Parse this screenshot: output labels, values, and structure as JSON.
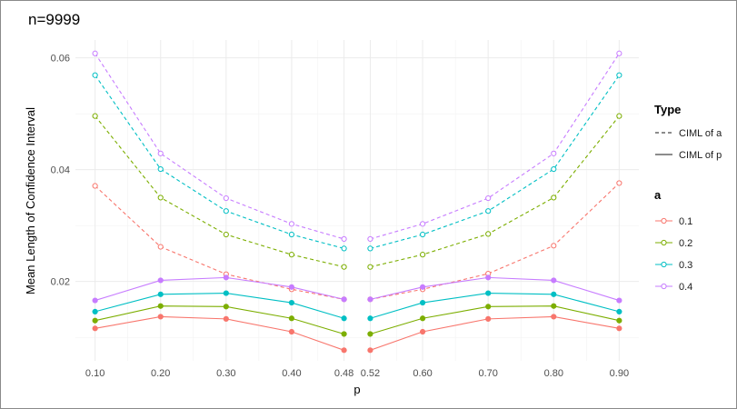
{
  "chart_data": {
    "type": "line",
    "title": "n=9999",
    "xlabel": "p",
    "ylabel": "Mean Length of Confidence Interval",
    "xlim": [
      0.07,
      0.93
    ],
    "ylim": [
      0.0058,
      0.0632
    ],
    "x_ticks": [
      0.1,
      0.2,
      0.3,
      0.4,
      0.48,
      0.52,
      0.6,
      0.7,
      0.8,
      0.9
    ],
    "x_tick_labels": [
      "0.10",
      "0.20",
      "0.30",
      "0.40",
      "0.48",
      "0.52",
      "0.60",
      "0.70",
      "0.80",
      "0.90"
    ],
    "y_ticks": [
      0.02,
      0.04,
      0.06
    ],
    "y_tick_labels": [
      "0.02",
      "0.04",
      "0.06"
    ],
    "grid": true,
    "legend_type": {
      "title": "Type",
      "entries": [
        {
          "label": "CIML of a",
          "linestyle": "dashed"
        },
        {
          "label": "CIML of p",
          "linestyle": "solid"
        }
      ]
    },
    "legend_a": {
      "title": "a",
      "entries": [
        {
          "label": "0.1",
          "color": "#F8766D"
        },
        {
          "label": "0.2",
          "color": "#7CAE00"
        },
        {
          "label": "0.3",
          "color": "#00BFC4"
        },
        {
          "label": "0.4",
          "color": "#C77CFF"
        }
      ]
    },
    "segments": {
      "left": [
        0.1,
        0.2,
        0.3,
        0.4,
        0.48
      ],
      "right": [
        0.52,
        0.6,
        0.7,
        0.8,
        0.9
      ]
    },
    "series": [
      {
        "a": "0.1",
        "type": "CIML of a",
        "color": "#F8766D",
        "linestyle": "dashed",
        "marker": "open",
        "x": [
          0.1,
          0.2,
          0.3,
          0.4,
          0.48,
          0.52,
          0.6,
          0.7,
          0.8,
          0.9
        ],
        "values": [
          0.0371,
          0.0262,
          0.0213,
          0.0186,
          0.0168,
          0.0168,
          0.0186,
          0.0214,
          0.0264,
          0.0376
        ]
      },
      {
        "a": "0.2",
        "type": "CIML of a",
        "color": "#7CAE00",
        "linestyle": "dashed",
        "marker": "open",
        "x": [
          0.1,
          0.2,
          0.3,
          0.4,
          0.48,
          0.52,
          0.6,
          0.7,
          0.8,
          0.9
        ],
        "values": [
          0.0496,
          0.035,
          0.0284,
          0.0248,
          0.0226,
          0.0226,
          0.0248,
          0.0285,
          0.035,
          0.0496
        ]
      },
      {
        "a": "0.3",
        "type": "CIML of a",
        "color": "#00BFC4",
        "linestyle": "dashed",
        "marker": "open",
        "x": [
          0.1,
          0.2,
          0.3,
          0.4,
          0.48,
          0.52,
          0.6,
          0.7,
          0.8,
          0.9
        ],
        "values": [
          0.0569,
          0.0401,
          0.0326,
          0.0284,
          0.0259,
          0.0259,
          0.0284,
          0.0326,
          0.0401,
          0.0569
        ]
      },
      {
        "a": "0.4",
        "type": "CIML of a",
        "color": "#C77CFF",
        "linestyle": "dashed",
        "marker": "open",
        "x": [
          0.1,
          0.2,
          0.3,
          0.4,
          0.48,
          0.52,
          0.6,
          0.7,
          0.8,
          0.9
        ],
        "values": [
          0.0608,
          0.0429,
          0.0349,
          0.0303,
          0.0276,
          0.0276,
          0.0303,
          0.0349,
          0.0429,
          0.0608
        ]
      },
      {
        "a": "0.1",
        "type": "CIML of p",
        "color": "#F8766D",
        "linestyle": "solid",
        "marker": "filled",
        "x": [
          0.1,
          0.2,
          0.3,
          0.4,
          0.48,
          0.52,
          0.6,
          0.7,
          0.8,
          0.9
        ],
        "values": [
          0.0116,
          0.0137,
          0.0133,
          0.011,
          0.0077,
          0.0077,
          0.011,
          0.0133,
          0.0137,
          0.0116
        ]
      },
      {
        "a": "0.2",
        "type": "CIML of p",
        "color": "#7CAE00",
        "linestyle": "solid",
        "marker": "filled",
        "x": [
          0.1,
          0.2,
          0.3,
          0.4,
          0.48,
          0.52,
          0.6,
          0.7,
          0.8,
          0.9
        ],
        "values": [
          0.013,
          0.0156,
          0.0155,
          0.0134,
          0.0106,
          0.0106,
          0.0134,
          0.0155,
          0.0156,
          0.013
        ]
      },
      {
        "a": "0.3",
        "type": "CIML of p",
        "color": "#00BFC4",
        "linestyle": "solid",
        "marker": "filled",
        "x": [
          0.1,
          0.2,
          0.3,
          0.4,
          0.48,
          0.52,
          0.6,
          0.7,
          0.8,
          0.9
        ],
        "values": [
          0.0146,
          0.0177,
          0.0179,
          0.0162,
          0.0134,
          0.0134,
          0.0162,
          0.0179,
          0.0177,
          0.0146
        ]
      },
      {
        "a": "0.4",
        "type": "CIML of p",
        "color": "#C77CFF",
        "linestyle": "solid",
        "marker": "filled",
        "x": [
          0.1,
          0.2,
          0.3,
          0.4,
          0.48,
          0.52,
          0.6,
          0.7,
          0.8,
          0.9
        ],
        "values": [
          0.0166,
          0.0202,
          0.0207,
          0.019,
          0.0168,
          0.0168,
          0.019,
          0.0207,
          0.0202,
          0.0166
        ]
      }
    ]
  }
}
